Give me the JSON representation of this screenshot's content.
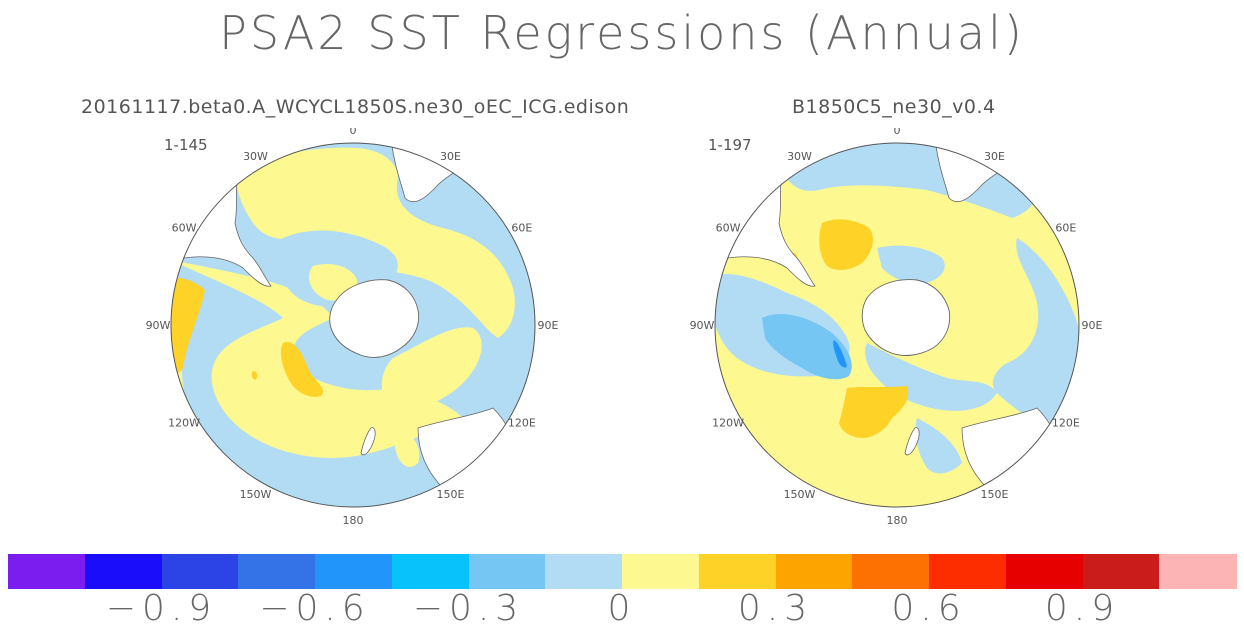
{
  "title": "PSA2 SST Regressions (Annual)",
  "panels": [
    {
      "title": "20161117.beta0.A_WCYCL1850S.ne30_oEC_ICG.edison",
      "years": "1-145"
    },
    {
      "title": "B1850C5_ne30_v0.4",
      "years": "1-197"
    }
  ],
  "lon_labels": [
    "0",
    "30E",
    "60E",
    "90E",
    "120E",
    "150E",
    "180",
    "150W",
    "120W",
    "90W",
    "60W",
    "30W"
  ],
  "chart_data": {
    "type": "contour-map",
    "projection": "south-polar-stereographic",
    "variable": "SST regression on PSA2",
    "season": "Annual",
    "colorbar": {
      "levels": [
        -1.05,
        -0.9,
        -0.75,
        -0.6,
        -0.45,
        -0.3,
        -0.15,
        0,
        0.15,
        0.3,
        0.45,
        0.6,
        0.75,
        0.9,
        1.05
      ],
      "tick_labels": [
        "−0.9",
        "−0.6",
        "−0.3",
        "0",
        "0.3",
        "0.6",
        "0.9"
      ],
      "tick_values": [
        -0.9,
        -0.6,
        -0.3,
        0,
        0.3,
        0.6,
        0.9
      ],
      "colors": [
        "#7c1df0",
        "#1a0dfa",
        "#2c44e6",
        "#3472e8",
        "#2295fb",
        "#08c2fb",
        "#76c6f3",
        "#b2dcf4",
        "#fdf890",
        "#fed227",
        "#fda400",
        "#fd7103",
        "#fd2d00",
        "#e60000",
        "#cb1c1c",
        "#fdb4b4"
      ]
    }
  }
}
